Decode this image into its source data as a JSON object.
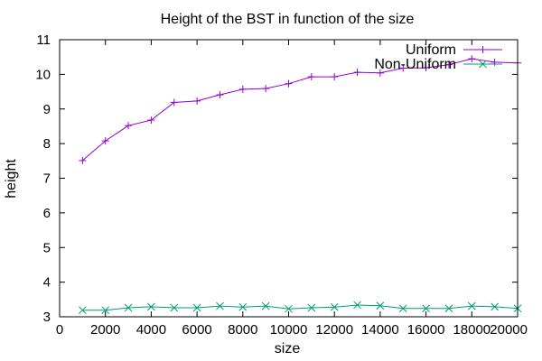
{
  "chart_data": {
    "type": "line",
    "title": "Height of the BST in function of the size",
    "xlabel": "size",
    "ylabel": "height",
    "xlim": [
      0,
      20000
    ],
    "ylim": [
      3,
      11
    ],
    "x_ticks": [
      0,
      2000,
      4000,
      6000,
      8000,
      10000,
      12000,
      14000,
      16000,
      18000,
      20000
    ],
    "y_ticks": [
      3,
      4,
      5,
      6,
      7,
      8,
      9,
      10,
      11
    ],
    "grid": false,
    "legend_position": "top-right",
    "x": [
      1000,
      2000,
      3000,
      4000,
      5000,
      6000,
      7000,
      8000,
      9000,
      10000,
      11000,
      12000,
      13000,
      14000,
      15000,
      16000,
      17000,
      18000,
      19000,
      20000
    ],
    "series": [
      {
        "name": "Uniform",
        "color": "#9400d3",
        "marker": "plus",
        "values": [
          7.51,
          8.08,
          8.52,
          8.68,
          9.19,
          9.23,
          9.41,
          9.57,
          9.59,
          9.73,
          9.93,
          9.93,
          10.06,
          10.04,
          10.18,
          10.19,
          10.28,
          10.45,
          10.35,
          10.33
        ]
      },
      {
        "name": "Non-Uniform",
        "color": "#009e73",
        "marker": "cross",
        "values": [
          3.19,
          3.19,
          3.26,
          3.29,
          3.26,
          3.26,
          3.31,
          3.28,
          3.31,
          3.23,
          3.26,
          3.28,
          3.34,
          3.32,
          3.24,
          3.24,
          3.24,
          3.31,
          3.29,
          3.24
        ]
      }
    ]
  }
}
